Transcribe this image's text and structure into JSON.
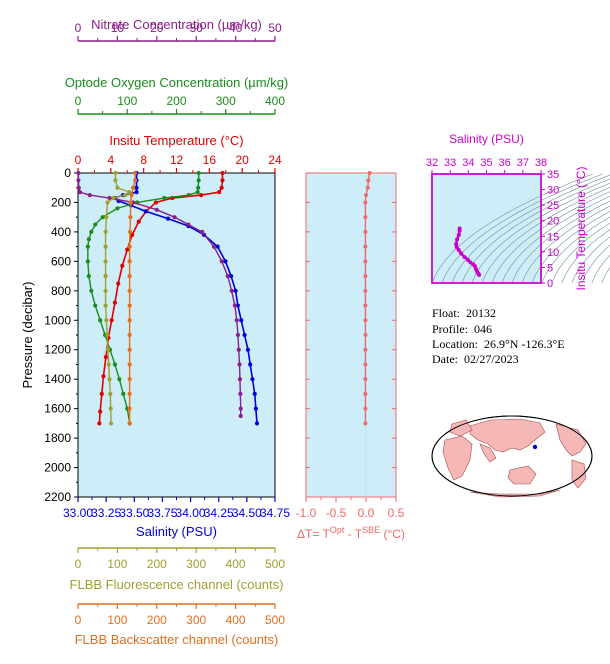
{
  "colors": {
    "nitrate": "#8b1e8b",
    "oxygen": "#1a8c1a",
    "temperature": "#e00000",
    "salinity": "#0000dd",
    "fluorescence": "#a0a030",
    "backscatter": "#e07020",
    "delta": "#f06a6a",
    "inset_salinity": "#cc00cc",
    "plot_bg": "#cdeef8"
  },
  "info": {
    "float_label": "Float:",
    "float_value": "20132",
    "profile_label": "Profile:",
    "profile_value": "046",
    "location_label": "Location:",
    "location_value": "26.9°N  -126.3°E",
    "date_label": "Date:",
    "date_value": "02/27/2023"
  },
  "chart_data": [
    {
      "type": "line",
      "name": "main-profile",
      "ylabel": "Pressure (decibar)",
      "ylim": [
        0,
        2200
      ],
      "yticks": [
        "0",
        "200",
        "400",
        "600",
        "800",
        "1000",
        "1200",
        "1400",
        "1600",
        "1800",
        "2000",
        "2200"
      ],
      "axes": {
        "nitrate": {
          "label": "Nitrate Concentration (µm/kg)",
          "range": [
            0,
            50
          ],
          "ticks": [
            "0",
            "10",
            "20",
            "30",
            "40",
            "50"
          ]
        },
        "oxygen": {
          "label": "Optode Oxygen Concentration (µm/kg)",
          "range": [
            0,
            400
          ],
          "ticks": [
            "0",
            "100",
            "200",
            "300",
            "400"
          ]
        },
        "temperature": {
          "label": "Insitu Temperature (°C)",
          "range": [
            0,
            24
          ],
          "ticks": [
            "0",
            "4",
            "8",
            "12",
            "16",
            "20",
            "24"
          ]
        },
        "salinity": {
          "label": "Salinity (PSU)",
          "range": [
            33.0,
            34.75
          ],
          "ticks": [
            "33.00",
            "33.25",
            "33.50",
            "33.75",
            "34.00",
            "34.25",
            "34.50",
            "34.75"
          ]
        },
        "fluorescence": {
          "label": "FLBB Fluorescence channel (counts)",
          "range": [
            0,
            500
          ],
          "ticks": [
            "0",
            "100",
            "200",
            "300",
            "400",
            "500"
          ]
        },
        "backscatter": {
          "label": "FLBB Backscatter channel (counts)",
          "range": [
            0,
            500
          ],
          "ticks": [
            "0",
            "100",
            "200",
            "300",
            "400",
            "500"
          ]
        }
      },
      "series": [
        {
          "key": "temperature",
          "points": [
            [
              17.6,
              0
            ],
            [
              17.6,
              50
            ],
            [
              17.5,
              100
            ],
            [
              17.2,
              130
            ],
            [
              15.0,
              150
            ],
            [
              11.5,
              170
            ],
            [
              9.5,
              200
            ],
            [
              8.3,
              260
            ],
            [
              7.4,
              330
            ],
            [
              6.6,
              420
            ],
            [
              6.0,
              520
            ],
            [
              5.4,
              630
            ],
            [
              4.9,
              750
            ],
            [
              4.5,
              880
            ],
            [
              4.1,
              1000
            ],
            [
              3.7,
              1120
            ],
            [
              3.4,
              1250
            ],
            [
              3.1,
              1380
            ],
            [
              2.9,
              1500
            ],
            [
              2.7,
              1620
            ],
            [
              2.6,
              1700
            ]
          ]
        },
        {
          "key": "salinity",
          "points": [
            [
              33.52,
              0
            ],
            [
              33.52,
              50
            ],
            [
              33.52,
              100
            ],
            [
              33.52,
              130
            ],
            [
              33.4,
              150
            ],
            [
              33.33,
              170
            ],
            [
              33.36,
              190
            ],
            [
              33.47,
              220
            ],
            [
              33.6,
              260
            ],
            [
              33.8,
              310
            ],
            [
              33.98,
              360
            ],
            [
              34.12,
              420
            ],
            [
              34.24,
              500
            ],
            [
              34.31,
              600
            ],
            [
              34.36,
              700
            ],
            [
              34.4,
              800
            ],
            [
              34.42,
              900
            ],
            [
              34.45,
              1000
            ],
            [
              34.48,
              1100
            ],
            [
              34.51,
              1200
            ],
            [
              34.53,
              1300
            ],
            [
              34.55,
              1400
            ],
            [
              34.57,
              1500
            ],
            [
              34.58,
              1600
            ],
            [
              34.59,
              1700
            ]
          ]
        },
        {
          "key": "oxygen",
          "points": [
            [
              245,
              0
            ],
            [
              245,
              50
            ],
            [
              244,
              100
            ],
            [
              243,
              130
            ],
            [
              225,
              150
            ],
            [
              175,
              170
            ],
            [
              120,
              200
            ],
            [
              80,
              240
            ],
            [
              50,
              300
            ],
            [
              35,
              350
            ],
            [
              27,
              400
            ],
            [
              22,
              450
            ],
            [
              20,
              500
            ],
            [
              20,
              600
            ],
            [
              22,
              700
            ],
            [
              27,
              800
            ],
            [
              35,
              900
            ],
            [
              45,
              1000
            ],
            [
              55,
              1100
            ],
            [
              65,
              1200
            ],
            [
              75,
              1300
            ],
            [
              84,
              1400
            ],
            [
              92,
              1500
            ],
            [
              100,
              1600
            ],
            [
              105,
              1700
            ]
          ]
        },
        {
          "key": "nitrate",
          "points": [
            [
              0.1,
              0
            ],
            [
              0.1,
              50
            ],
            [
              0.2,
              100
            ],
            [
              0.5,
              130
            ],
            [
              3,
              150
            ],
            [
              8,
              170
            ],
            [
              14,
              200
            ],
            [
              20,
              250
            ],
            [
              24.5,
              300
            ],
            [
              28,
              350
            ],
            [
              31.5,
              400
            ],
            [
              34.5,
              500
            ],
            [
              36.5,
              600
            ],
            [
              38,
              700
            ],
            [
              39,
              800
            ],
            [
              39.8,
              900
            ],
            [
              40.3,
              1000
            ],
            [
              40.6,
              1100
            ],
            [
              40.8,
              1200
            ],
            [
              41,
              1300
            ],
            [
              41.1,
              1400
            ],
            [
              41.2,
              1500
            ],
            [
              41.3,
              1600
            ],
            [
              41.3,
              1650
            ]
          ]
        },
        {
          "key": "fluorescence",
          "points": [
            [
              95,
              0
            ],
            [
              95,
              50
            ],
            [
              100,
              100
            ],
            [
              130,
              130
            ],
            [
              120,
              150
            ],
            [
              90,
              170
            ],
            [
              75,
              200
            ],
            [
              72,
              300
            ],
            [
              70,
              400
            ],
            [
              70,
              500
            ],
            [
              70,
              600
            ],
            [
              70,
              700
            ],
            [
              70,
              800
            ],
            [
              70,
              900
            ],
            [
              72,
              1000
            ],
            [
              74,
              1100
            ],
            [
              76,
              1200
            ],
            [
              78,
              1300
            ],
            [
              80,
              1400
            ],
            [
              82,
              1500
            ],
            [
              83,
              1600
            ],
            [
              84,
              1700
            ]
          ]
        },
        {
          "key": "backscatter",
          "points": [
            [
              145,
              0
            ],
            [
              145,
              50
            ],
            [
              140,
              100
            ],
            [
              136,
              150
            ],
            [
              134,
              200
            ],
            [
              133,
              300
            ],
            [
              132,
              400
            ],
            [
              131,
              500
            ],
            [
              131,
              600
            ],
            [
              131,
              700
            ],
            [
              131,
              800
            ],
            [
              131,
              900
            ],
            [
              131,
              1000
            ],
            [
              131,
              1100
            ],
            [
              131,
              1200
            ],
            [
              131,
              1300
            ],
            [
              131,
              1400
            ],
            [
              131,
              1500
            ],
            [
              131,
              1600
            ],
            [
              131,
              1700
            ]
          ]
        }
      ]
    },
    {
      "type": "line",
      "name": "delta-t",
      "xlabel": "ΔT= T^Opt - T^SBE (°C)",
      "xlabel_parts": {
        "prefix": "ΔT= T",
        "sup1": "Opt",
        "mid": " - T",
        "sup2": "SBE",
        "suffix": " (°C)"
      },
      "xlim": [
        -1.0,
        0.5
      ],
      "xticks": [
        "-1.0",
        "-0.5",
        "0.0",
        "0.5"
      ],
      "ylim": [
        0,
        2200
      ],
      "points": [
        [
          0.06,
          0
        ],
        [
          0.04,
          50
        ],
        [
          0.03,
          100
        ],
        [
          0.0,
          150
        ],
        [
          -0.01,
          200
        ],
        [
          -0.01,
          300
        ],
        [
          -0.01,
          400
        ],
        [
          -0.01,
          500
        ],
        [
          -0.01,
          600
        ],
        [
          -0.01,
          700
        ],
        [
          -0.01,
          800
        ],
        [
          -0.01,
          900
        ],
        [
          -0.01,
          1000
        ],
        [
          -0.01,
          1100
        ],
        [
          -0.01,
          1200
        ],
        [
          -0.01,
          1300
        ],
        [
          -0.01,
          1400
        ],
        [
          -0.01,
          1500
        ],
        [
          -0.01,
          1600
        ],
        [
          -0.01,
          1700
        ]
      ]
    },
    {
      "type": "line",
      "name": "ts-diagram",
      "xlabel": "Salinity (PSU)",
      "ylabel": "Insitu Temperature (°C)",
      "xlim": [
        32,
        38
      ],
      "ylim": [
        0,
        35
      ],
      "xticks": [
        "32",
        "33",
        "34",
        "35",
        "36",
        "37",
        "38"
      ],
      "yticks": [
        "0",
        "5",
        "10",
        "15",
        "20",
        "25",
        "30",
        "35"
      ],
      "points": [
        [
          34.59,
          2.6
        ],
        [
          34.55,
          3.1
        ],
        [
          34.48,
          3.7
        ],
        [
          34.42,
          4.5
        ],
        [
          34.36,
          5.4
        ],
        [
          34.27,
          6.0
        ],
        [
          34.12,
          6.6
        ],
        [
          33.98,
          7.4
        ],
        [
          33.8,
          8.3
        ],
        [
          33.6,
          9.5
        ],
        [
          33.47,
          10.6
        ],
        [
          33.36,
          11.5
        ],
        [
          33.33,
          12.5
        ],
        [
          33.38,
          14.0
        ],
        [
          33.48,
          15.5
        ],
        [
          33.52,
          16.8
        ],
        [
          33.52,
          17.5
        ]
      ]
    }
  ]
}
